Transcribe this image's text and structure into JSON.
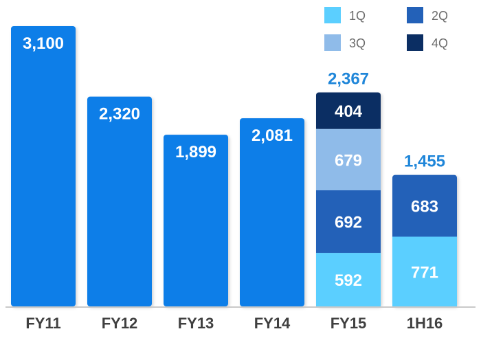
{
  "chart_data": {
    "type": "bar",
    "stacked": true,
    "categories": [
      "FY11",
      "FY12",
      "FY13",
      "FY14",
      "FY15",
      "1H16"
    ],
    "series": [
      {
        "name": "1Q",
        "color": "#5bcfff",
        "values": [
          null,
          null,
          null,
          null,
          592,
          771
        ]
      },
      {
        "name": "2Q",
        "color": "#2361b8",
        "values": [
          null,
          null,
          null,
          null,
          692,
          683
        ]
      },
      {
        "name": "3Q",
        "color": "#8fbbe9",
        "values": [
          null,
          null,
          null,
          null,
          679,
          null
        ]
      },
      {
        "name": "4Q",
        "color": "#0b2e63",
        "values": [
          null,
          null,
          null,
          null,
          404,
          null
        ]
      }
    ],
    "annual": {
      "name": "",
      "color": "#0a7ee8",
      "values": [
        3100,
        2320,
        1899,
        2081,
        null,
        null
      ]
    },
    "labels": {
      "annual": [
        "3,100",
        "2,320",
        "1,899",
        "2,081",
        "",
        ""
      ],
      "1Q": [
        "",
        "",
        "",
        "",
        "592",
        "771"
      ],
      "2Q": [
        "",
        "",
        "",
        "",
        "692",
        "683"
      ],
      "3Q": [
        "",
        "",
        "",
        "",
        "679",
        ""
      ],
      "4Q": [
        "",
        "",
        "",
        "",
        "404",
        ""
      ],
      "totals": [
        "",
        "",
        "",
        "",
        "2,367",
        "1,455"
      ]
    },
    "total_label_color": "#1f86d9",
    "legend": [
      "1Q",
      "2Q",
      "3Q",
      "4Q"
    ],
    "legend_position": "top-right",
    "ylim": [
      0,
      3100
    ],
    "grid": false,
    "title": "",
    "xlabel": "",
    "ylabel": ""
  }
}
